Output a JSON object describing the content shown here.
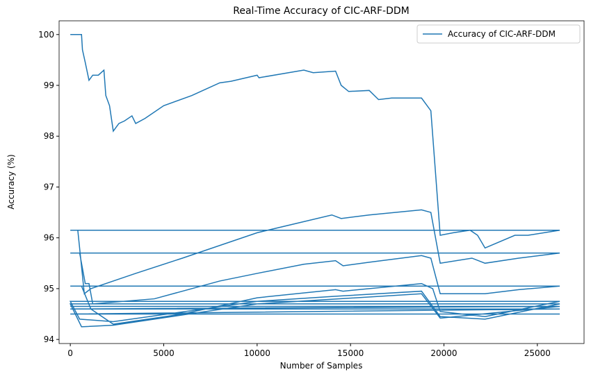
{
  "chart_data": {
    "type": "line",
    "title": "Real-Time Accuracy of CIC-ARF-DDM",
    "xlabel": "Number of Samples",
    "ylabel": "Accuracy (%)",
    "xlim": [
      -600,
      27500
    ],
    "ylim": [
      93.92,
      100.27
    ],
    "xticks": [
      0,
      5000,
      10000,
      15000,
      20000,
      25000
    ],
    "yticks": [
      94,
      95,
      96,
      97,
      98,
      99,
      100
    ],
    "legend": "upper right",
    "x": [
      0,
      600,
      650,
      800,
      1000,
      1200,
      1500,
      1800,
      1900,
      2100,
      2300,
      2600,
      2900,
      3300,
      3500,
      4000,
      5000,
      6500,
      8000,
      8600,
      10000,
      10100,
      12500,
      13000,
      14200,
      14500,
      14900,
      16000,
      16500,
      17200,
      18800,
      19300,
      19800,
      20500,
      21400,
      21800,
      22200,
      23800,
      24500,
      26200,
      0,
      400,
      750,
      1100,
      3500,
      6000,
      10000,
      14000,
      14500,
      16000,
      18800,
      19300,
      19800,
      21500,
      22200,
      24000,
      26200,
      0,
      500,
      800,
      1000,
      1200,
      4500,
      8000,
      10000,
      12500,
      14200,
      14600,
      16000,
      18800,
      19300,
      19800,
      22200,
      24000,
      26200,
      0,
      600,
      1100,
      2300,
      6000,
      10000,
      14200,
      14600,
      18800,
      19400,
      19800,
      22200,
      26200,
      0,
      500,
      2300,
      10000,
      14200,
      18800,
      19800,
      22200,
      26200,
      0,
      600,
      2300,
      10000,
      18800,
      19800,
      26200,
      0,
      26200,
      0,
      26200,
      0,
      26200
    ],
    "series": [
      {
        "name": "Accuracy of CIC-ARF-DDM",
        "color": "#1f77b4",
        "values": [
          100,
          100,
          99.7,
          99.45,
          99.1,
          99.2,
          99.2,
          99.3,
          98.8,
          98.6,
          98.1,
          98.25,
          98.3,
          98.4,
          98.25,
          98.35,
          98.6,
          98.8,
          99.05,
          99.08,
          99.2,
          99.15,
          99.3,
          99.25,
          99.28,
          99.0,
          98.88,
          98.9,
          98.72,
          98.75,
          98.75,
          98.5,
          96.05,
          96.1,
          96.15,
          96.05,
          95.8,
          96.05,
          96.05,
          96.15,
          96.15,
          96.15,
          94.9,
          95.0,
          95.3,
          95.6,
          96.1,
          96.45,
          96.38,
          96.45,
          96.55,
          96.5,
          95.5,
          95.6,
          95.5,
          95.6,
          95.7,
          95.7,
          95.7,
          95.1,
          95.1,
          94.7,
          94.8,
          95.15,
          95.3,
          95.48,
          95.55,
          95.45,
          95.52,
          95.65,
          95.6,
          94.9,
          94.9,
          94.98,
          95.05,
          95.05,
          95.05,
          94.6,
          94.3,
          94.5,
          94.82,
          94.98,
          94.95,
          95.1,
          95.0,
          94.55,
          94.45,
          94.75,
          94.75,
          94.4,
          94.35,
          94.75,
          94.85,
          94.95,
          94.45,
          94.4,
          94.7,
          94.7,
          94.25,
          94.28,
          94.7,
          94.9,
          94.42,
          94.65,
          94.65,
          94.65,
          94.6,
          94.6,
          94.5,
          94.5
        ]
      }
    ]
  }
}
